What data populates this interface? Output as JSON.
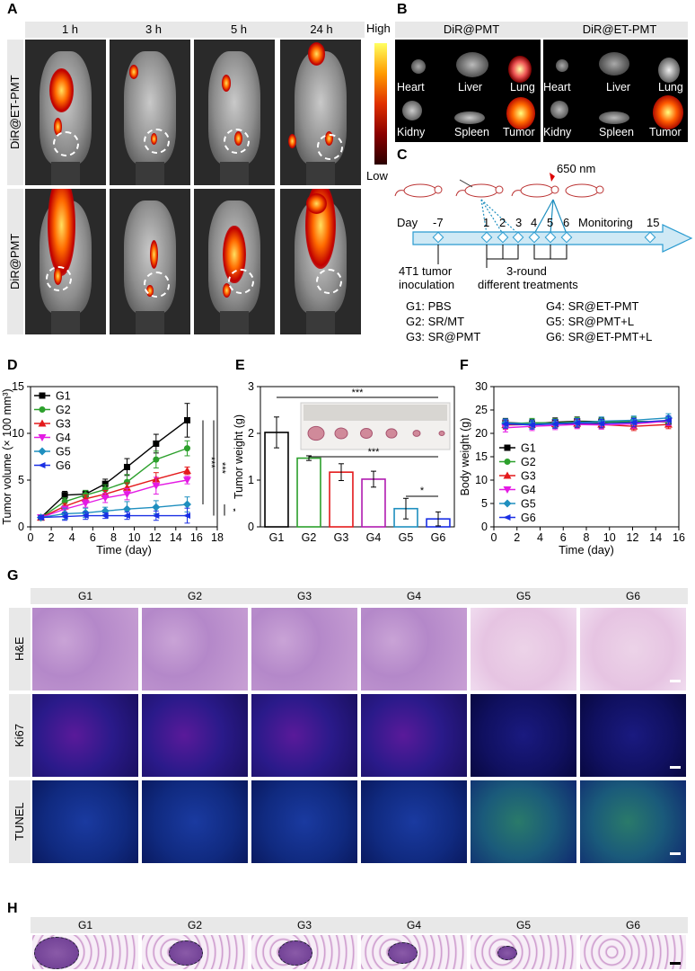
{
  "panels": {
    "A": "A",
    "B": "B",
    "C": "C",
    "D": "D",
    "E": "E",
    "F": "F",
    "G": "G",
    "H": "H"
  },
  "panelA": {
    "times": [
      "1 h",
      "3 h",
      "5 h",
      "24 h"
    ],
    "rows": [
      "DiR@ET-PMT",
      "DiR@PMT"
    ],
    "colorbar": {
      "high": "High",
      "low": "Low"
    }
  },
  "panelB": {
    "groups": [
      "DiR@PMT",
      "DiR@ET-PMT"
    ],
    "organs_top": [
      "Heart",
      "Liver",
      "Lung"
    ],
    "organs_bottom": [
      "Kidny",
      "Spleen",
      "Tumor"
    ]
  },
  "panelC": {
    "laser": "650 nm",
    "day_label": "Day",
    "days": [
      "-7",
      "1",
      "2",
      "3",
      "4",
      "5",
      "6",
      "15"
    ],
    "monitoring": "Monitoring",
    "inoculation": [
      "4T1 tumor",
      "inoculation"
    ],
    "treatment": [
      "3-round",
      "different treatments"
    ],
    "legend_left": [
      "G1: PBS",
      "G2: SR/MT",
      "G3: SR@PMT"
    ],
    "legend_right": [
      "G4: SR@ET-PMT",
      "G5: SR@PMT+L",
      "G6: SR@ET-PMT+L"
    ]
  },
  "chart_data": [
    {
      "id": "D",
      "type": "line",
      "xlabel": "Time (day)",
      "ylabel": "Tumor volume (× 100 mm³)",
      "xlim": [
        0,
        18
      ],
      "ylim": [
        0,
        15
      ],
      "xticks": [
        "0",
        "2",
        "4",
        "6",
        "8",
        "10",
        "12",
        "14",
        "16",
        "18"
      ],
      "yticks": [
        "0",
        "5",
        "10",
        "15"
      ],
      "x": [
        1,
        3.3,
        5.3,
        7.2,
        9.3,
        12.1,
        15.1
      ],
      "series": [
        {
          "name": "G1",
          "color": "#000000",
          "values": [
            1.0,
            3.4,
            3.5,
            4.6,
            6.4,
            8.9,
            11.4
          ],
          "err": [
            0.2,
            0.4,
            0.4,
            0.5,
            0.9,
            1.0,
            1.8
          ]
        },
        {
          "name": "G2",
          "color": "#2ca02c",
          "values": [
            1.0,
            2.7,
            3.4,
            4.0,
            4.8,
            7.2,
            8.4
          ],
          "err": [
            0.2,
            0.4,
            0.5,
            0.5,
            0.8,
            0.9,
            0.8
          ]
        },
        {
          "name": "G3",
          "color": "#e41a1c",
          "values": [
            1.0,
            2.2,
            3.0,
            3.5,
            4.2,
            5.1,
            6.0
          ],
          "err": [
            0.2,
            0.3,
            0.4,
            0.4,
            0.5,
            0.7,
            0.4
          ]
        },
        {
          "name": "G4",
          "color": "#e41ae4",
          "values": [
            1.0,
            1.9,
            2.5,
            3.1,
            3.5,
            4.4,
            5.0
          ],
          "err": [
            0.2,
            0.3,
            0.4,
            0.5,
            0.6,
            0.9,
            0.4
          ]
        },
        {
          "name": "G5",
          "color": "#1f8fbf",
          "values": [
            1.0,
            1.4,
            1.5,
            1.7,
            1.9,
            2.1,
            2.4
          ],
          "err": [
            0.2,
            0.6,
            0.5,
            0.4,
            0.8,
            0.7,
            0.8
          ]
        },
        {
          "name": "G6",
          "color": "#1a2fe4",
          "values": [
            1.0,
            1.1,
            1.2,
            1.2,
            1.2,
            1.2,
            1.2
          ],
          "err": [
            0.2,
            0.4,
            0.4,
            0.3,
            0.4,
            0.5,
            0.8
          ]
        }
      ],
      "significance": [
        "***",
        "***",
        "*"
      ]
    },
    {
      "id": "E",
      "type": "bar",
      "ylabel": "Tumor weight (g)",
      "ylim": [
        0,
        3
      ],
      "yticks": [
        "0",
        "1",
        "2",
        "3"
      ],
      "categories": [
        "G1",
        "G2",
        "G3",
        "G4",
        "G5",
        "G6"
      ],
      "values": [
        2.02,
        1.47,
        1.17,
        1.02,
        0.39,
        0.17
      ],
      "err": [
        0.33,
        0.05,
        0.18,
        0.17,
        0.22,
        0.15
      ],
      "colors": [
        "#000000",
        "#2ca02c",
        "#e41a1c",
        "#b01ab0",
        "#1f8fbf",
        "#1a2fe4"
      ],
      "significance": [
        "***",
        "***",
        "*"
      ]
    },
    {
      "id": "F",
      "type": "line",
      "xlabel": "Time (day)",
      "ylabel": "Body weight (g)",
      "xlim": [
        0,
        16
      ],
      "ylim": [
        0,
        30
      ],
      "xticks": [
        "0",
        "2",
        "4",
        "6",
        "8",
        "10",
        "12",
        "14",
        "16"
      ],
      "yticks": [
        "0",
        "5",
        "10",
        "15",
        "20",
        "25",
        "30"
      ],
      "x": [
        1,
        3.3,
        5.3,
        7.2,
        9.3,
        12.1,
        15.1
      ],
      "series": [
        {
          "name": "G1",
          "color": "#000000",
          "values": [
            22.3,
            22.1,
            22.4,
            22.6,
            22.5,
            22.4,
            22.5
          ]
        },
        {
          "name": "G2",
          "color": "#2ca02c",
          "values": [
            22.0,
            22.3,
            22.2,
            22.5,
            22.3,
            22.6,
            22.4
          ]
        },
        {
          "name": "G3",
          "color": "#e41a1c",
          "values": [
            21.8,
            21.9,
            22.0,
            22.1,
            21.9,
            21.5,
            21.9
          ]
        },
        {
          "name": "G4",
          "color": "#e41ae4",
          "values": [
            21.2,
            21.5,
            21.7,
            21.9,
            21.8,
            22.0,
            22.6
          ]
        },
        {
          "name": "G5",
          "color": "#1f8fbf",
          "values": [
            22.2,
            22.0,
            22.1,
            22.3,
            22.6,
            22.8,
            23.3
          ]
        },
        {
          "name": "G6",
          "color": "#1a2fe4",
          "values": [
            22.0,
            21.8,
            22.0,
            22.2,
            22.1,
            22.3,
            22.8
          ]
        }
      ]
    }
  ],
  "panelG": {
    "groups": [
      "G1",
      "G2",
      "G3",
      "G4",
      "G5",
      "G6"
    ],
    "rows": [
      "H&E",
      "Ki67",
      "TUNEL"
    ]
  },
  "panelH": {
    "groups": [
      "G1",
      "G2",
      "G3",
      "G4",
      "G5",
      "G6"
    ]
  }
}
